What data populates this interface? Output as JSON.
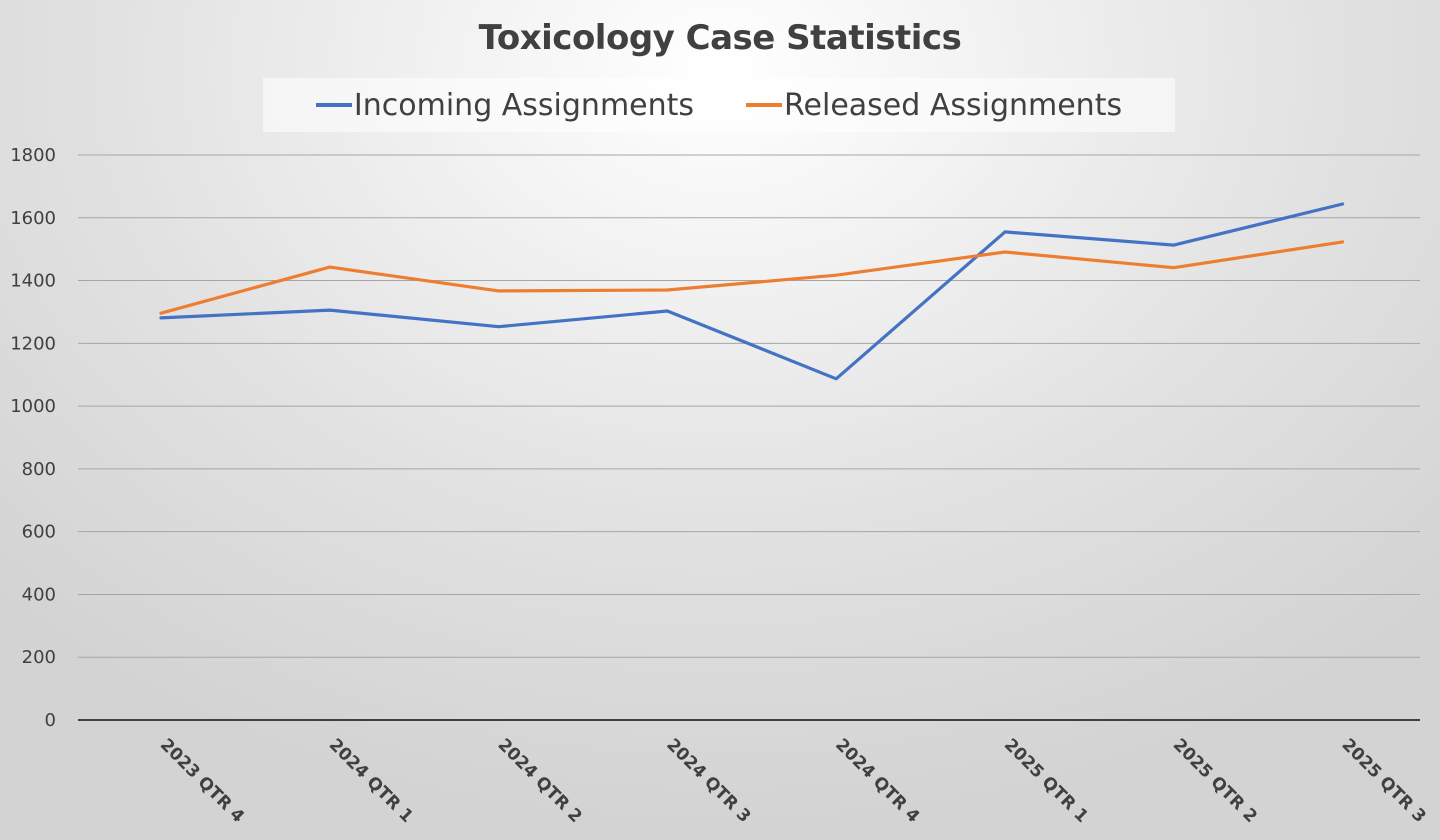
{
  "chart_data": {
    "type": "line",
    "title": "Toxicology Case Statistics",
    "xlabel": "",
    "ylabel": "",
    "categories": [
      "2023 QTR 4",
      "2024 QTR 1",
      "2024 QTR 2",
      "2024 QTR 3",
      "2024 QTR 4",
      "2025 QTR 1",
      "2025 QTR 2",
      "2025 QTR 3"
    ],
    "series": [
      {
        "name": "Incoming Assignments",
        "color": "#4472C4",
        "values": [
          1281,
          1306,
          1253,
          1303,
          1087,
          1555,
          1513,
          1644
        ]
      },
      {
        "name": "Released Assignments",
        "color": "#ED7D31",
        "values": [
          1296,
          1443,
          1367,
          1370,
          1417,
          1491,
          1441,
          1523
        ]
      }
    ],
    "ylim": [
      0,
      1800
    ],
    "yticks": [
      0,
      200,
      400,
      600,
      800,
      1000,
      1200,
      1400,
      1600,
      1800
    ],
    "grid": true,
    "legend_position": "top"
  }
}
